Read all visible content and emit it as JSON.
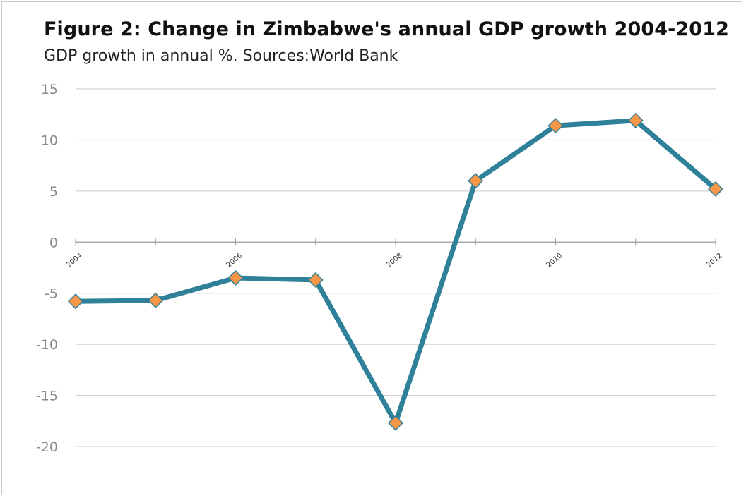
{
  "chart_data": {
    "type": "line",
    "title": "Figure 2: Change in Zimbabwe's annual GDP growth 2004-2012",
    "subtitle": "GDP growth in annual %.    Sources:World Bank",
    "x": [
      2004,
      2005,
      2006,
      2007,
      2008,
      2009,
      2010,
      2011,
      2012
    ],
    "x_tick_labels": [
      "2004",
      "2006",
      "2008",
      "2010",
      "2012"
    ],
    "x_tick_values": [
      2004,
      2006,
      2008,
      2010,
      2012
    ],
    "y_tick_labels": [
      "15",
      "10",
      "5",
      "0",
      "-5",
      "-10",
      "-15",
      "-20"
    ],
    "y_tick_values": [
      15,
      10,
      5,
      0,
      -5,
      -10,
      -15,
      -20
    ],
    "ylim": [
      -20,
      15
    ],
    "xlim": [
      2004,
      2012
    ],
    "grid": true,
    "series": [
      {
        "values": [
          -5.8,
          -5.7,
          -3.5,
          -3.7,
          -17.7,
          6.0,
          11.4,
          11.9,
          5.2
        ]
      }
    ],
    "colors": {
      "line": "#2e8198",
      "marker_fill": "#f79646",
      "marker_stroke": "#2e8198",
      "grid": "#c8c8c8"
    }
  }
}
